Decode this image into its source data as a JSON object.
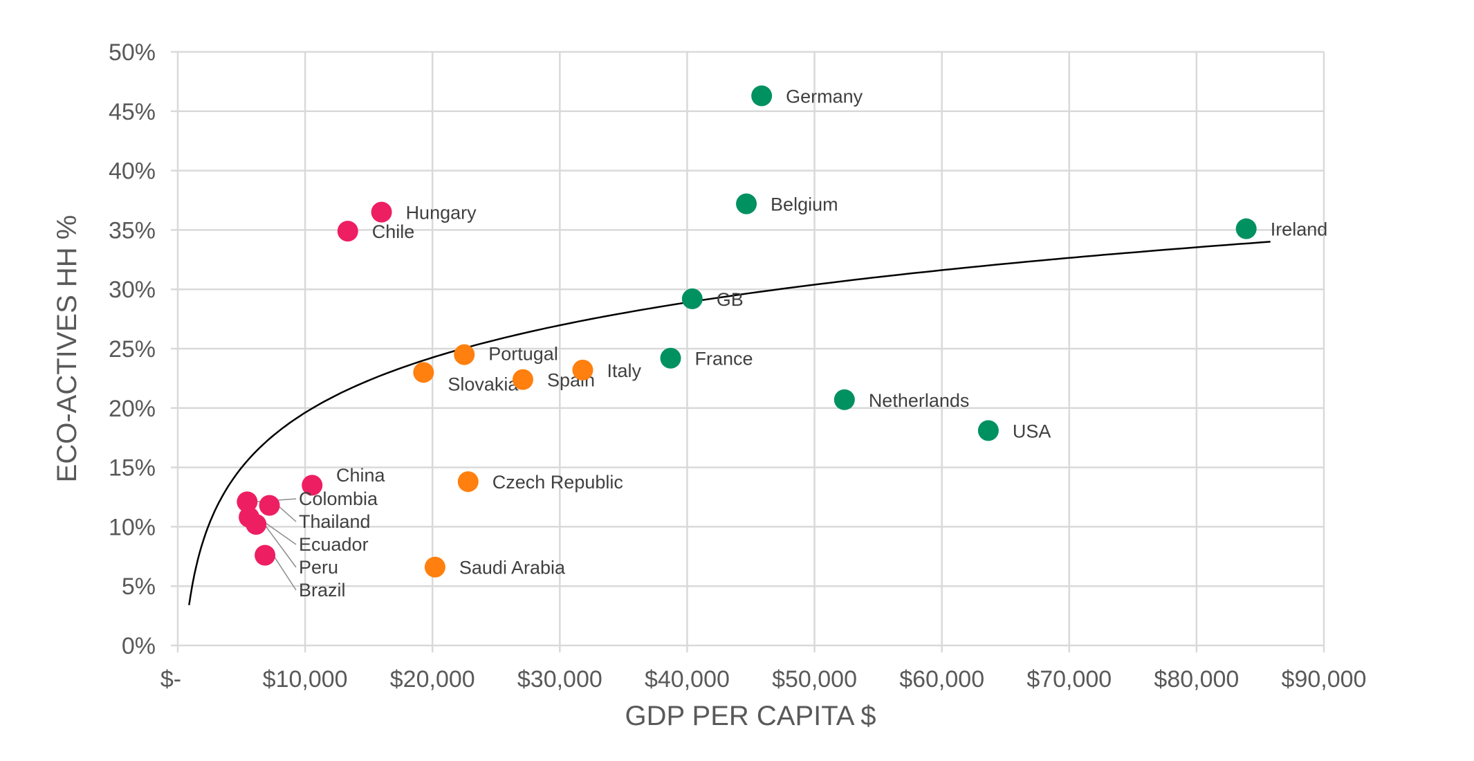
{
  "chart_data": {
    "type": "scatter",
    "title": "",
    "xlabel": "GDP PER CAPITA $",
    "ylabel": "ECO-ACTIVES HH %",
    "xlim": [
      0,
      90000
    ],
    "ylim": [
      0,
      50
    ],
    "x_ticks": [
      0,
      10000,
      20000,
      30000,
      40000,
      50000,
      60000,
      70000,
      80000,
      90000
    ],
    "x_tick_labels": [
      "$-",
      "$10,000",
      "$20,000",
      "$30,000",
      "$40,000",
      "$50,000",
      "$60,000",
      "$70,000",
      "$80,000",
      "$90,000"
    ],
    "y_ticks": [
      0,
      5,
      10,
      15,
      20,
      25,
      30,
      35,
      40,
      45,
      50
    ],
    "y_tick_labels": [
      "0%",
      "5%",
      "10%",
      "15%",
      "20%",
      "25%",
      "30%",
      "35%",
      "40%",
      "45%",
      "50%"
    ],
    "grid": true,
    "legend": "none",
    "groups": {
      "pink": "#ee1e63",
      "orange": "#ff7f0f",
      "green": "#009160"
    },
    "points": [
      {
        "label": "Germany",
        "x": 45850,
        "y": 46.3,
        "group": "green"
      },
      {
        "label": "Belgium",
        "x": 44650,
        "y": 37.2,
        "group": "green"
      },
      {
        "label": "Ireland",
        "x": 83900,
        "y": 35.1,
        "group": "green"
      },
      {
        "label": "GB",
        "x": 40400,
        "y": 29.2,
        "group": "green"
      },
      {
        "label": "France",
        "x": 38700,
        "y": 24.2,
        "group": "green"
      },
      {
        "label": "Netherlands",
        "x": 52350,
        "y": 20.7,
        "group": "green"
      },
      {
        "label": "USA",
        "x": 63650,
        "y": 18.1,
        "group": "green"
      },
      {
        "label": "Hungary",
        "x": 16000,
        "y": 36.5,
        "group": "pink"
      },
      {
        "label": "Chile",
        "x": 13350,
        "y": 34.9,
        "group": "pink"
      },
      {
        "label": "China",
        "x": 10550,
        "y": 13.5,
        "group": "pink"
      },
      {
        "label": "Colombia",
        "x": 5450,
        "y": 12.1,
        "group": "pink"
      },
      {
        "label": "Thailand",
        "x": 7200,
        "y": 11.8,
        "group": "pink"
      },
      {
        "label": "Ecuador",
        "x": 5600,
        "y": 10.8,
        "group": "pink"
      },
      {
        "label": "Peru",
        "x": 6150,
        "y": 10.2,
        "group": "pink"
      },
      {
        "label": "Brazil",
        "x": 6850,
        "y": 7.6,
        "group": "pink"
      },
      {
        "label": "Portugal",
        "x": 22500,
        "y": 24.5,
        "group": "orange"
      },
      {
        "label": "Slovakia",
        "x": 19300,
        "y": 23.0,
        "group": "orange"
      },
      {
        "label": "Spain",
        "x": 27100,
        "y": 22.4,
        "group": "orange"
      },
      {
        "label": "Italy",
        "x": 31800,
        "y": 23.2,
        "group": "orange"
      },
      {
        "label": "Czech Republic",
        "x": 22800,
        "y": 13.8,
        "group": "orange"
      },
      {
        "label": "Saudi Arabia",
        "x": 20200,
        "y": 6.6,
        "group": "orange"
      }
    ],
    "trendline": {
      "type": "logarithmic",
      "a": 6.7,
      "b": -42.1,
      "x_range": [
        890,
        85800
      ],
      "color": "#000000"
    }
  }
}
